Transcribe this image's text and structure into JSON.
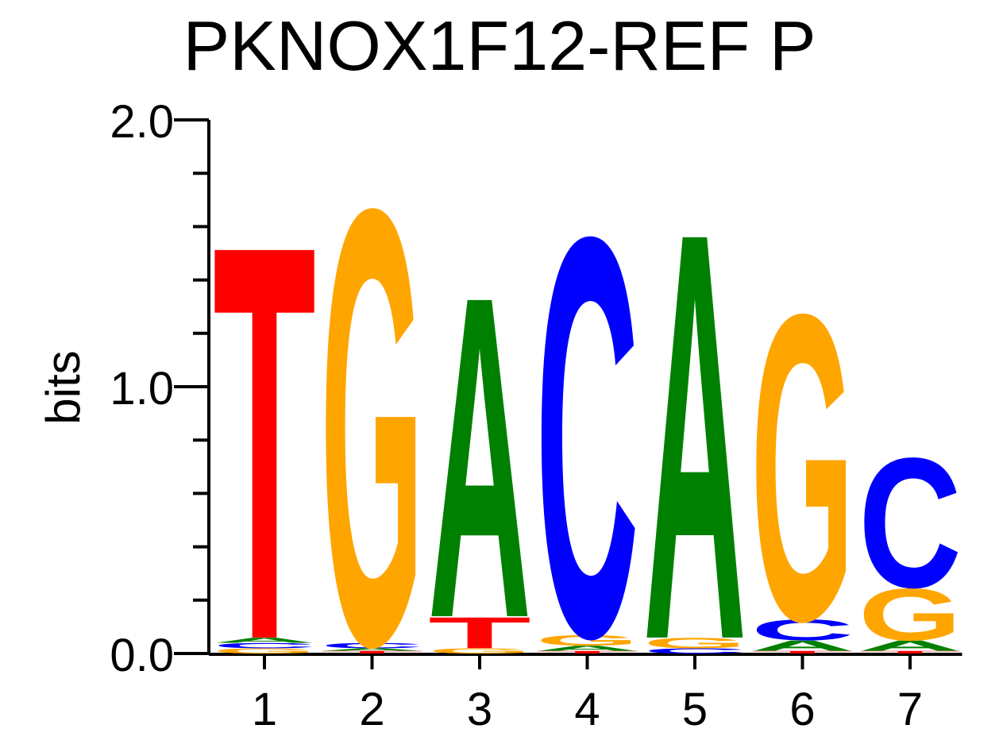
{
  "chart_data": {
    "type": "sequence-logo",
    "title": "PKNOX1F12-REF P",
    "ylabel": "bits",
    "xlabel": "",
    "ylim": [
      0,
      2
    ],
    "y_ticks": [
      "0.0",
      "1.0",
      "2.0"
    ],
    "positions": [
      "1",
      "2",
      "3",
      "4",
      "5",
      "6",
      "7"
    ],
    "colors": {
      "A": "#008000",
      "C": "#0000ff",
      "G": "#ffa500",
      "T": "#ff0000"
    },
    "stacks": [
      [
        {
          "base": "G",
          "bits": 0.02
        },
        {
          "base": "C",
          "bits": 0.02
        },
        {
          "base": "A",
          "bits": 0.02
        },
        {
          "base": "T",
          "bits": 1.52
        }
      ],
      [
        {
          "base": "T",
          "bits": 0.01
        },
        {
          "base": "A",
          "bits": 0.01
        },
        {
          "base": "C",
          "bits": 0.02
        },
        {
          "base": "G",
          "bits": 1.68
        }
      ],
      [
        {
          "base": "G",
          "bits": 0.02
        },
        {
          "base": "T",
          "bits": 0.12
        },
        {
          "base": "A",
          "bits": 1.24
        }
      ],
      [
        {
          "base": "T",
          "bits": 0.01
        },
        {
          "base": "A",
          "bits": 0.02
        },
        {
          "base": "G",
          "bits": 0.04
        },
        {
          "base": "C",
          "bits": 1.54
        }
      ],
      [
        {
          "base": "C",
          "bits": 0.02
        },
        {
          "base": "G",
          "bits": 0.04
        },
        {
          "base": "A",
          "bits": 1.57
        }
      ],
      [
        {
          "base": "T",
          "bits": 0.01
        },
        {
          "base": "A",
          "bits": 0.04
        },
        {
          "base": "C",
          "bits": 0.08
        },
        {
          "base": "G",
          "bits": 1.18
        }
      ],
      [
        {
          "base": "T",
          "bits": 0.01
        },
        {
          "base": "A",
          "bits": 0.04
        },
        {
          "base": "G",
          "bits": 0.2
        },
        {
          "base": "C",
          "bits": 0.5
        }
      ]
    ]
  }
}
